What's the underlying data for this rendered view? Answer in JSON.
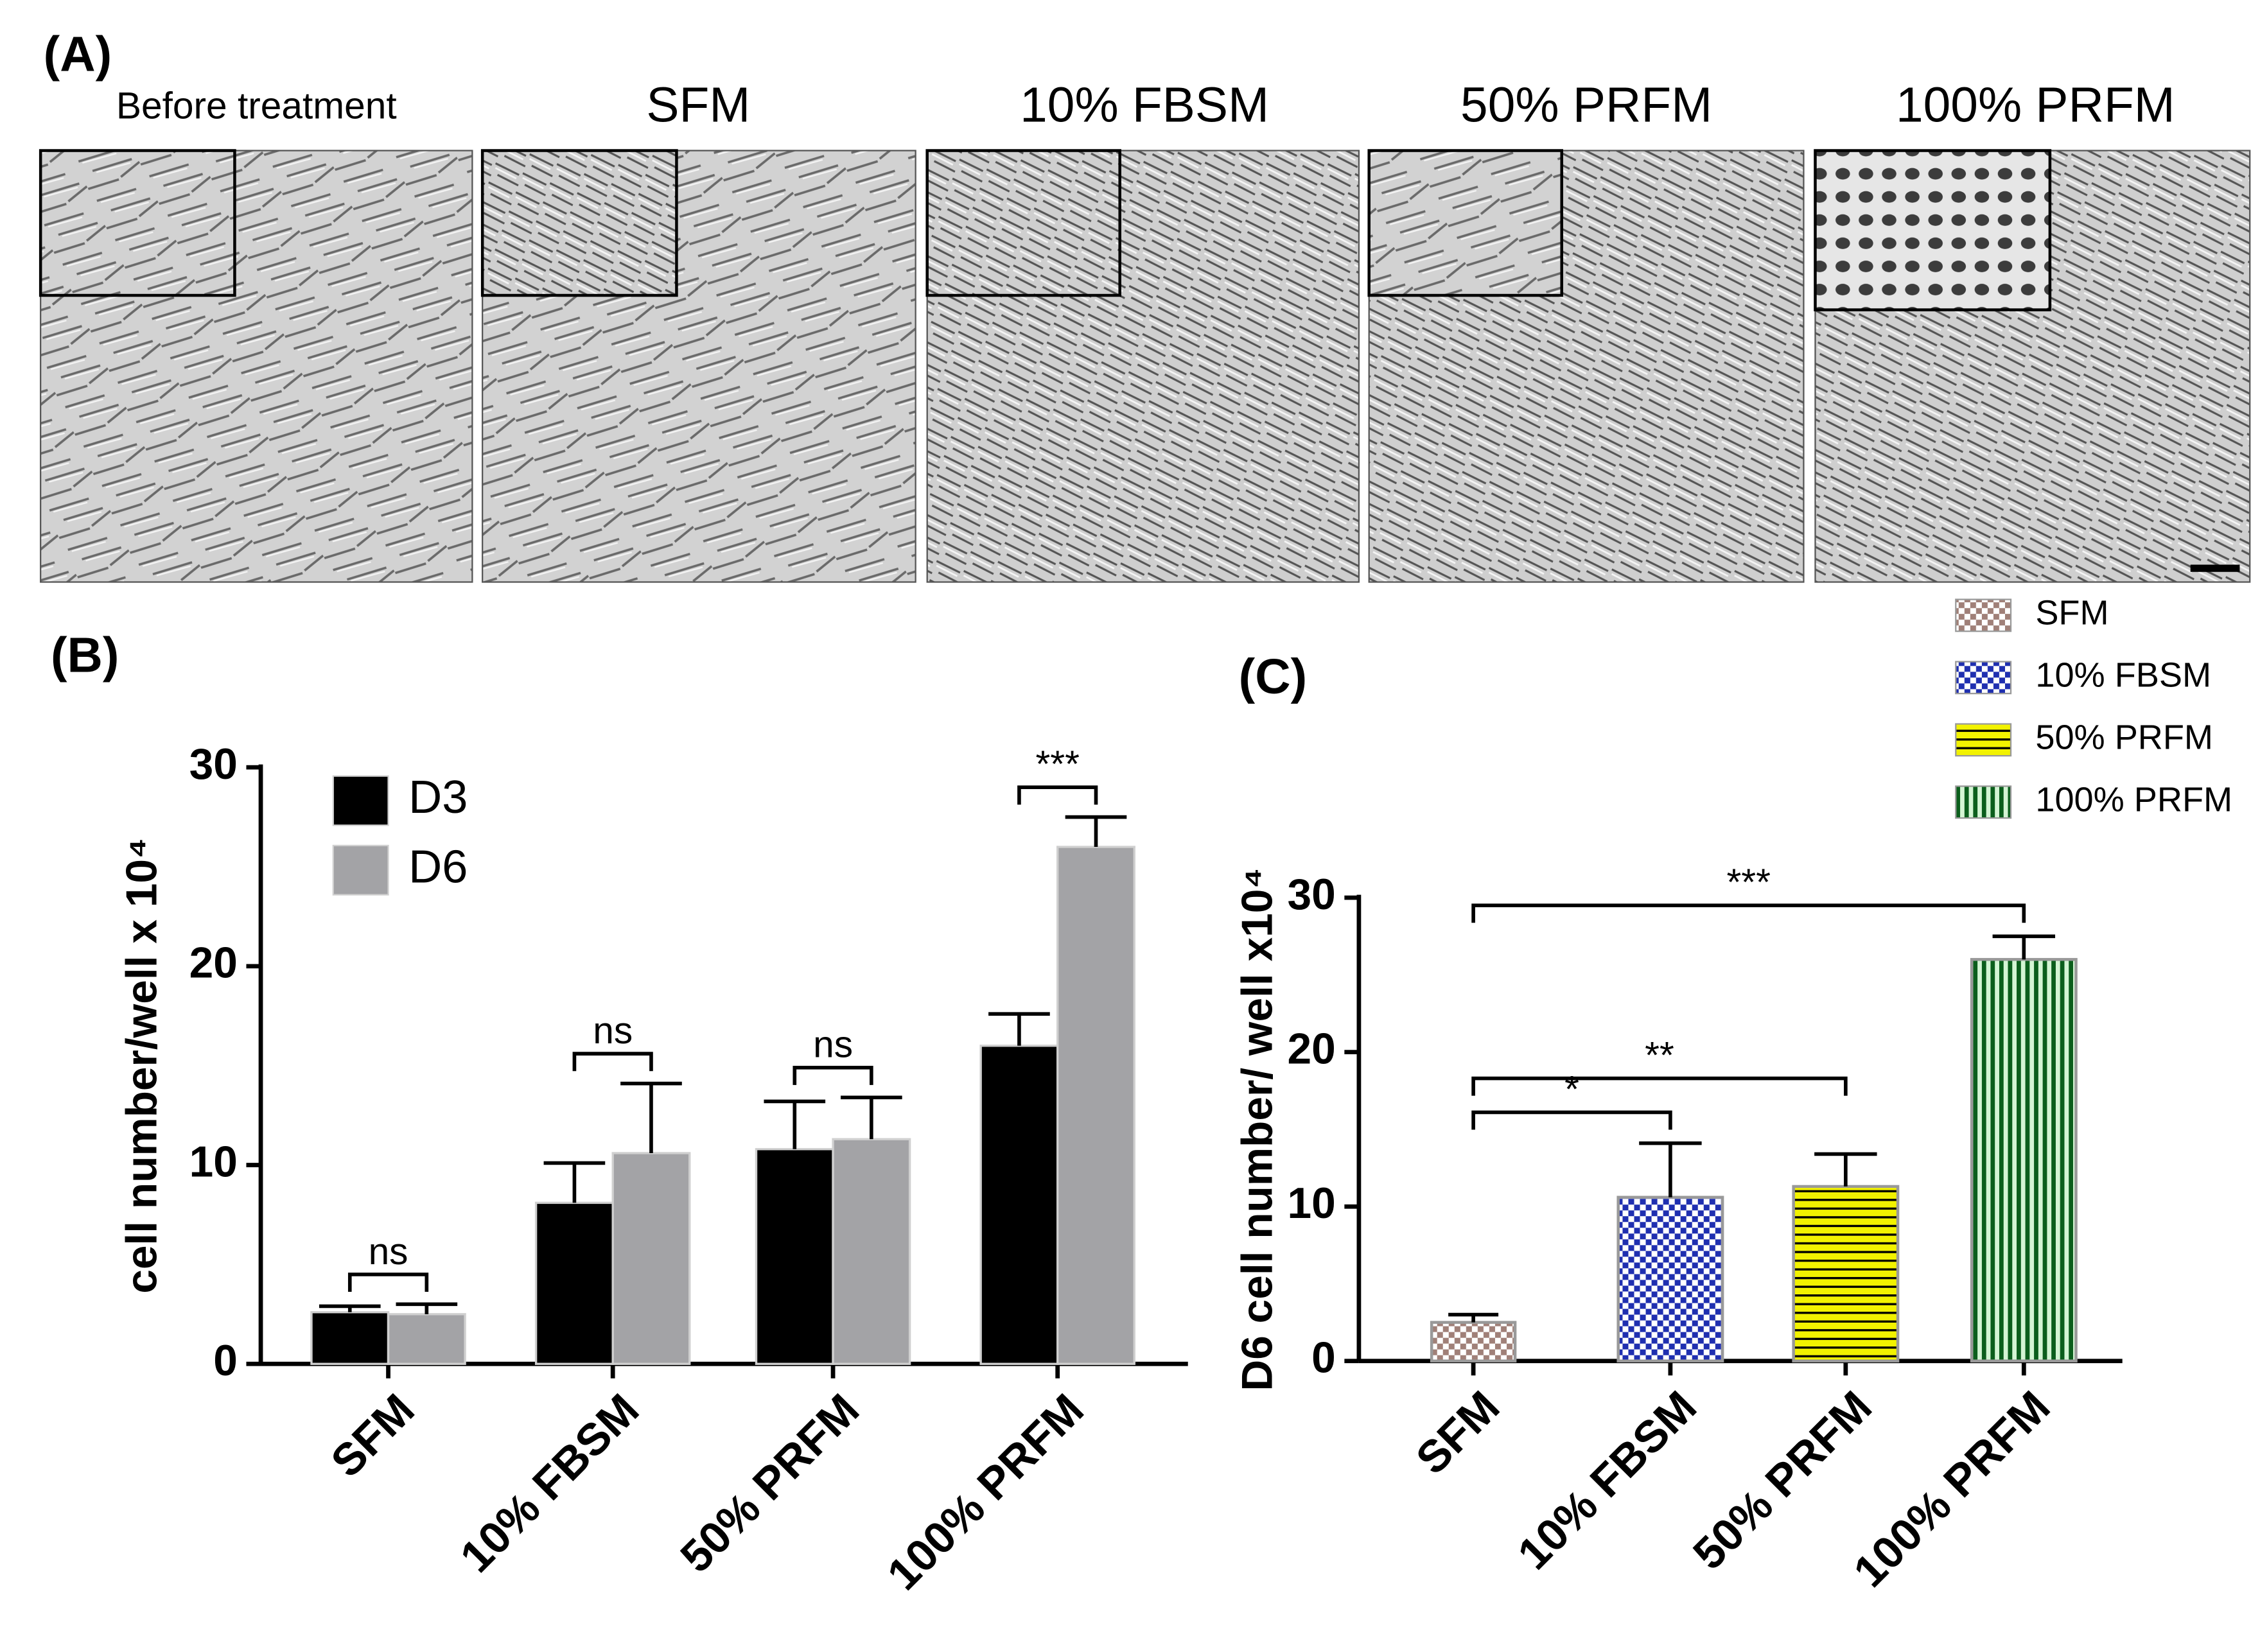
{
  "panel_a": {
    "label": "(A)",
    "titles": [
      "Before treatment",
      "SFM",
      "10% FBSM",
      "50% PRFM",
      "100% PRFM"
    ]
  },
  "chart_data": [
    {
      "type": "bar",
      "panel_label": "(B)",
      "ylabel": "cell number/well x 10⁴",
      "categories": [
        "SFM",
        "10% FBSM",
        "50% PRFM",
        "100% PRFM"
      ],
      "series": [
        {
          "name": "D3",
          "color": "#000000",
          "values": [
            2.6,
            8.1,
            10.8,
            16.0
          ],
          "errors": [
            0.3,
            2.0,
            2.4,
            1.6
          ]
        },
        {
          "name": "D6",
          "color": "#a3a3a6",
          "values": [
            2.5,
            10.6,
            11.3,
            26.0
          ],
          "errors": [
            0.5,
            3.5,
            2.1,
            1.5
          ]
        }
      ],
      "ylim": [
        0,
        30
      ],
      "yticks": [
        0,
        10,
        20,
        30
      ],
      "legend": "upper left",
      "annotations": [
        "ns",
        "ns",
        "ns",
        "***"
      ]
    },
    {
      "type": "bar",
      "panel_label": "(C)",
      "ylabel": "D6 cell number/ well x10⁴",
      "categories": [
        "SFM",
        "10% FBSM",
        "50% PRFM",
        "100% PRFM"
      ],
      "values": [
        2.5,
        10.6,
        11.3,
        26.0
      ],
      "errors": [
        0.5,
        3.5,
        2.1,
        1.5
      ],
      "colors": [
        "#a08078",
        "#1f2fb0",
        "#f2f200",
        "#0b5e1c"
      ],
      "patterns": [
        "checker",
        "checker",
        "hlines",
        "vlines"
      ],
      "ylim": [
        0,
        30
      ],
      "yticks": [
        0,
        10,
        20,
        30
      ],
      "legend": "upper right",
      "comparisons": [
        {
          "label": "*",
          "from": 0,
          "to": 1
        },
        {
          "label": "**",
          "from": 0,
          "to": 2
        },
        {
          "label": "***",
          "from": 0,
          "to": 3
        }
      ]
    }
  ]
}
